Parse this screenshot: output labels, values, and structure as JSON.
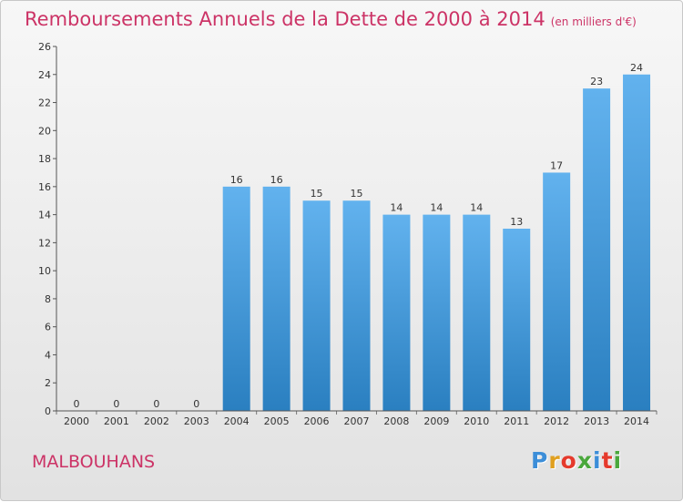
{
  "header": {
    "title": "Remboursements Annuels de la Dette de 2000 à 2014",
    "unit": "(en milliers d'€)"
  },
  "footer": {
    "commune": "MALBOUHANS",
    "logo_letters": [
      "P",
      "r",
      "o",
      "x",
      "i",
      "t",
      "i"
    ],
    "logo_colors": [
      "#3c8ed8",
      "#e0a020",
      "#e53a2c",
      "#4aa83c",
      "#3c8ed8",
      "#e53a2c",
      "#4aa83c"
    ]
  },
  "colors": {
    "bar_light": "#62b2ee",
    "bar_dark": "#2a7fc0",
    "title": "#cc3366"
  },
  "chart_data": {
    "type": "bar",
    "categories": [
      "2000",
      "2001",
      "2002",
      "2003",
      "2004",
      "2005",
      "2006",
      "2007",
      "2008",
      "2009",
      "2010",
      "2011",
      "2012",
      "2013",
      "2014"
    ],
    "values": [
      0,
      0,
      0,
      0,
      16,
      16,
      15,
      15,
      14,
      14,
      14,
      13,
      17,
      23,
      24
    ],
    "ylim": [
      0,
      26
    ],
    "yticks": [
      0,
      2,
      4,
      6,
      8,
      10,
      12,
      14,
      16,
      18,
      20,
      22,
      24,
      26
    ],
    "grid": false
  }
}
